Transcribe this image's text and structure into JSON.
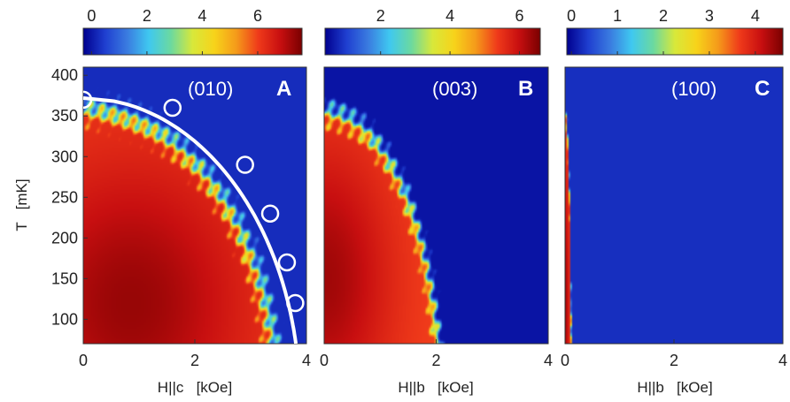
{
  "chart_data": [
    {
      "type": "heatmap",
      "panel": "A",
      "annotation": "(010)",
      "xlabel": "H||c   [kOe]",
      "ylabel": "T   [mK]",
      "xlim": [
        0,
        4
      ],
      "ylim": [
        70,
        410
      ],
      "x_ticks": [
        "0",
        "2",
        "4"
      ],
      "y_ticks": [
        "100",
        "150",
        "200",
        "250",
        "300",
        "350",
        "400"
      ],
      "colorbar": {
        "min": -0.3,
        "max": 7.6,
        "ticks": [
          "0",
          "2",
          "4",
          "6"
        ]
      },
      "boundary_curve": {
        "Tc0": 372,
        "Hc": 3.88
      },
      "points": [
        {
          "x": 0.0,
          "y": 370
        },
        {
          "x": 1.6,
          "y": 360
        },
        {
          "x": 2.9,
          "y": 290
        },
        {
          "x": 3.35,
          "y": 230
        },
        {
          "x": 3.65,
          "y": 170
        },
        {
          "x": 3.8,
          "y": 120
        }
      ],
      "intensity_model": {
        "peak": 7.3,
        "peak_H": 0.85,
        "peak_T": 120,
        "Tc0": 372,
        "Hc": 3.6,
        "floor": 0.25
      }
    },
    {
      "type": "heatmap",
      "panel": "B",
      "annotation": "(003)",
      "xlabel": "H||b   [kOe]",
      "xlim": [
        0,
        4
      ],
      "ylim": [
        70,
        410
      ],
      "x_ticks": [
        "0",
        "2",
        "4"
      ],
      "colorbar": {
        "min": 0.4,
        "max": 6.6,
        "ticks": [
          "2",
          "4",
          "6"
        ]
      },
      "intensity_model": {
        "peak": 6.3,
        "peak_H": 0.0,
        "peak_T": 150,
        "Tc0": 368,
        "Hc": 2.15,
        "floor": 0.6
      }
    },
    {
      "type": "heatmap",
      "panel": "C",
      "annotation": "(100)",
      "xlabel": "H||b   [kOe]",
      "xlim": [
        0,
        4
      ],
      "ylim": [
        70,
        410
      ],
      "x_ticks": [
        "0",
        "2",
        "4"
      ],
      "colorbar": {
        "min": -0.1,
        "max": 4.6,
        "ticks": [
          "0",
          "1",
          "2",
          "3",
          "4"
        ]
      },
      "intensity_model": {
        "peak": 4.4,
        "peak_H": 0.0,
        "peak_T": 120,
        "Tc0": 365,
        "Hc": 0.12,
        "floor": 0.25
      }
    }
  ],
  "colors": {
    "cmap": [
      "#00008f",
      "#1f3fd0",
      "#3a7be0",
      "#3fc8f0",
      "#6bd9a0",
      "#d8e83a",
      "#f7d31a",
      "#f59a1a",
      "#ef3a1a",
      "#c80f10",
      "#7a0000"
    ]
  }
}
